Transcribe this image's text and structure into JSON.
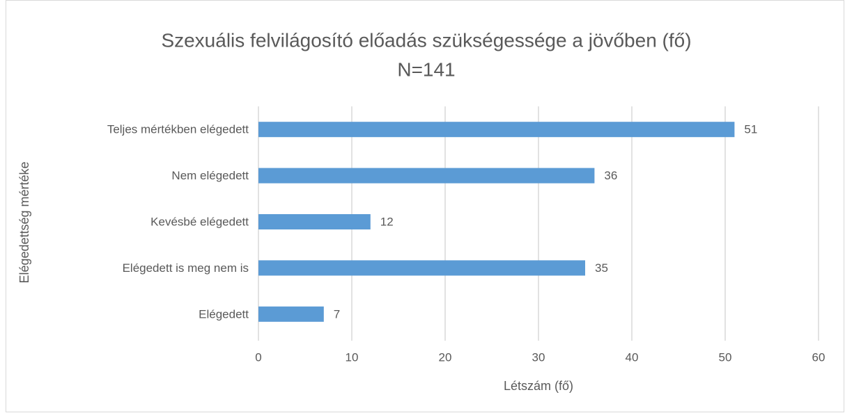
{
  "chart_data": {
    "type": "barh",
    "title": "Szexuális felvilágosító előadás szükségessége a jövőben (fő)",
    "subtitle": "N=141",
    "x_label": "Létszám (fő)",
    "y_label": "Elégedettség mértéke",
    "categories": [
      "Teljes mértékben elégedett",
      "Nem elégedett",
      "Kevésbé elégedett",
      "Elégedett is meg nem is",
      "Elégedett"
    ],
    "values": [
      51,
      36,
      12,
      35,
      7
    ],
    "color": "#5b9bd5",
    "xlim": [
      0,
      60
    ],
    "xticks": [
      0,
      10,
      20,
      30,
      40,
      50,
      60
    ],
    "grid": true
  }
}
